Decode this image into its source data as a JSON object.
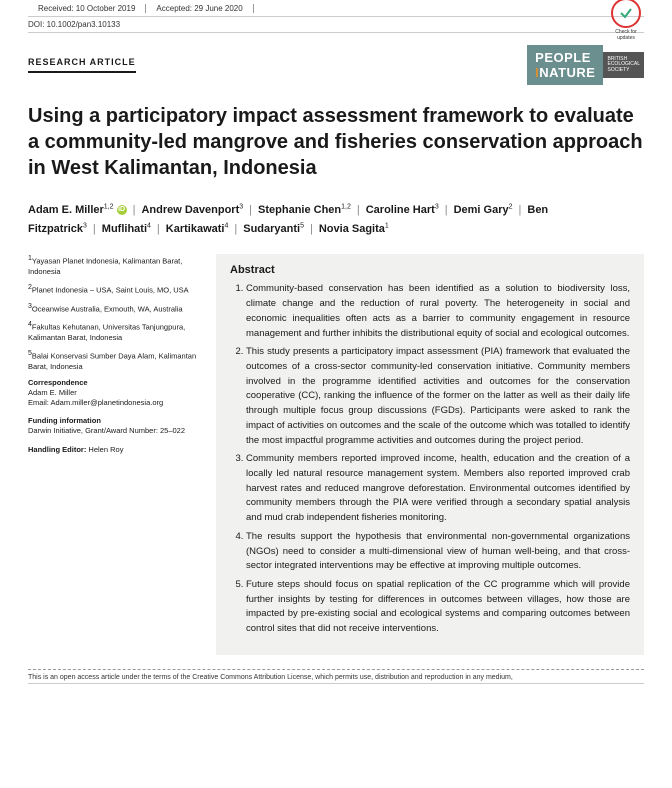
{
  "topbar": {
    "received": "Received: 10 October 2019",
    "accepted": "Accepted: 29 June 2020",
    "updates_label": "Check for updates"
  },
  "doi": "DOI: 10.1002/pan3.10133",
  "article_type": "RESEARCH ARTICLE",
  "journal": {
    "line1": "PEOPLE",
    "and": "I",
    "line2": "NATURE",
    "side1": "BRITISH",
    "side2": "ECOLOGICAL",
    "side3": "SOCIETY"
  },
  "title": "Using a participatory impact assessment framework to evaluate a community-led mangrove and fisheries conservation approach in West Kalimantan, Indonesia",
  "authors": [
    {
      "name": "Adam E. Miller",
      "sup": "1,2",
      "orcid": true
    },
    {
      "name": "Andrew Davenport",
      "sup": "3"
    },
    {
      "name": "Stephanie Chen",
      "sup": "1,2"
    },
    {
      "name": "Caroline Hart",
      "sup": "3"
    },
    {
      "name": "Demi Gary",
      "sup": "2"
    },
    {
      "name": "Ben Fitzpatrick",
      "sup": "3"
    },
    {
      "name": "Muflihati",
      "sup": "4"
    },
    {
      "name": "Kartikawati",
      "sup": "4"
    },
    {
      "name": "Sudaryanti",
      "sup": "5"
    },
    {
      "name": "Novia Sagita",
      "sup": "1"
    }
  ],
  "affiliations": [
    "Yayasan Planet Indonesia, Kalimantan Barat, Indonesia",
    "Planet Indonesia – USA, Saint Louis, MO, USA",
    "Oceanwise Australia, Exmouth, WA, Australia",
    "Fakultas Kehutanan, Universitas Tanjungpura, Kalimantan Barat, Indonesia",
    "Balai Konservasi Sumber Daya Alam, Kalimantan Barat, Indonesia"
  ],
  "correspondence": {
    "heading": "Correspondence",
    "name": "Adam E. Miller",
    "email": "Email: Adam.miller@planetindonesia.org"
  },
  "funding": {
    "heading": "Funding information",
    "text": "Darwin Initiative, Grant/Award Number: 25–022"
  },
  "handling": {
    "label": "Handling Editor:",
    "name": "Helen Roy"
  },
  "abstract": {
    "heading": "Abstract",
    "items": [
      "Community-based conservation has been identified as a solution to biodiversity loss, climate change and the reduction of rural poverty. The heterogeneity in social and economic inequalities often acts as a barrier to community engagement in resource management and further inhibits the distributional equity of social and ecological outcomes.",
      "This study presents a participatory impact assessment (PIA) framework that evaluated the outcomes of a cross-sector community-led conservation initiative. Community members involved in the programme identified activities and outcomes for the conservation cooperative (CC), ranking the influence of the former on the latter as well as their daily life through multiple focus group discussions (FGDs). Participants were asked to rank the impact of activities on outcomes and the scale of the outcome which was totalled to identify the most impactful programme activities and outcomes during the project period.",
      "Community members reported improved income, health, education and the creation of a locally led natural resource management system. Members also reported improved crab harvest rates and reduced mangrove deforestation. Environmental outcomes identified by community members through the PIA were verified through a secondary spatial analysis and mud crab independent fisheries monitoring.",
      "The results support the hypothesis that environmental non-governmental organizations (NGOs) need to consider a multi-dimensional view of human well-being, and that cross-sector integrated interventions may be effective at improving multiple outcomes.",
      "Future steps should focus on spatial replication of the CC programme which will provide further insights by testing for differences in outcomes between villages, how those are impacted by pre-existing social and ecological systems and comparing outcomes between control sites that did not receive interventions."
    ]
  },
  "footer": "This is an open access article under the terms of the Creative Commons Attribution License, which permits use, distribution and reproduction in any medium,",
  "colors": {
    "journal_bg": "#6b8e8e",
    "journal_accent": "#d89030",
    "orcid": "#a6ce39",
    "abstract_bg": "#f1f1ef"
  }
}
